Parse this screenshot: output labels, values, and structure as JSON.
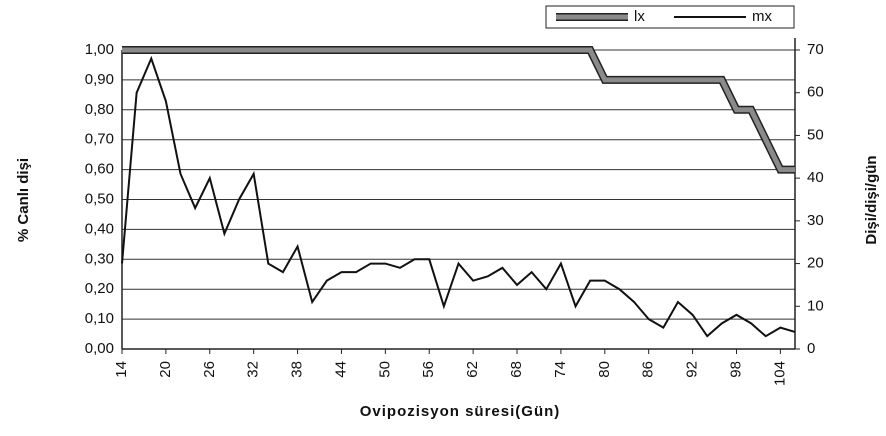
{
  "chart_data": {
    "type": "line",
    "ylabel": "% Canlı dişi",
    "y2label": "Dişi/dişi/gün",
    "xlabel": "Ovipozisyon süresi(Gün)",
    "legend": "upper right",
    "grid": true,
    "xlim": [
      14,
      106
    ],
    "xticks": [
      14,
      20,
      26,
      32,
      38,
      44,
      50,
      56,
      62,
      68,
      74,
      80,
      86,
      92,
      98,
      104
    ],
    "ylim": [
      0,
      1
    ],
    "yticks": [
      {
        "value": 0,
        "label": "0,00"
      },
      {
        "value": 0.1,
        "label": "0,10"
      },
      {
        "value": 0.2,
        "label": "0,20"
      },
      {
        "value": 0.3,
        "label": "0,30"
      },
      {
        "value": 0.4,
        "label": "0,40"
      },
      {
        "value": 0.5,
        "label": "0,50"
      },
      {
        "value": 0.6,
        "label": "0,60"
      },
      {
        "value": 0.7,
        "label": "0,70"
      },
      {
        "value": 0.8,
        "label": "0,80"
      },
      {
        "value": 0.9,
        "label": "0,90"
      },
      {
        "value": 1,
        "label": "1,00"
      }
    ],
    "y2lim": [
      0,
      70
    ],
    "y2ticks": [
      0,
      10,
      20,
      30,
      40,
      50,
      60,
      70
    ],
    "x": [
      14,
      16,
      18,
      20,
      22,
      24,
      26,
      28,
      30,
      32,
      34,
      36,
      38,
      40,
      42,
      44,
      46,
      48,
      50,
      52,
      54,
      56,
      58,
      60,
      62,
      64,
      66,
      68,
      70,
      72,
      74,
      76,
      78,
      80,
      82,
      84,
      86,
      88,
      90,
      92,
      94,
      96,
      98,
      100,
      102,
      104,
      106
    ],
    "series": [
      {
        "name": "lx",
        "color": "#8a8a8a",
        "values": [
          1,
          1,
          1,
          1,
          1,
          1,
          1,
          1,
          1,
          1,
          1,
          1,
          1,
          1,
          1,
          1,
          1,
          1,
          1,
          1,
          1,
          1,
          1,
          1,
          1,
          1,
          1,
          1,
          1,
          1,
          1,
          1,
          1,
          0.9,
          0.9,
          0.9,
          0.9,
          0.9,
          0.9,
          0.9,
          0.9,
          0.9,
          0.8,
          0.8,
          0.7,
          0.6,
          0.6
        ]
      },
      {
        "name": "mx",
        "color": "#111111",
        "axis": "y2",
        "values": [
          20,
          60,
          68,
          58,
          41,
          33,
          40,
          27,
          35,
          41,
          20,
          18,
          24,
          11,
          16,
          18,
          18,
          20,
          20,
          19,
          21,
          21,
          10,
          20,
          16,
          17,
          19,
          15,
          18,
          14,
          20,
          10,
          16,
          16,
          14,
          11,
          7,
          5,
          11,
          8,
          3,
          6,
          8,
          6,
          3,
          5,
          4
        ]
      }
    ]
  }
}
